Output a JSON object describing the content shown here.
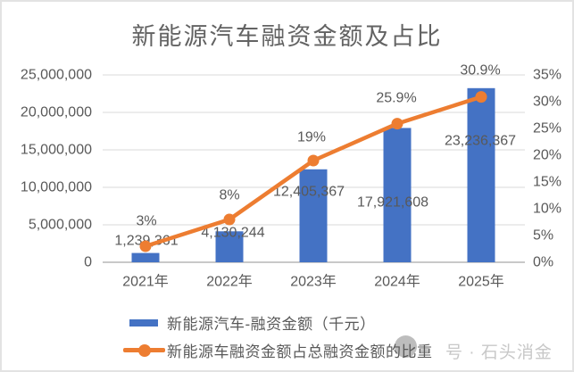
{
  "chart_data": {
    "type": "combo-bar-line",
    "title": "新能源汽车融资金额及占比",
    "categories": [
      "2021年",
      "2022年",
      "2023年",
      "2024年",
      "2025年"
    ],
    "series": [
      {
        "name": "新能源汽车-融资金额（千元）",
        "type": "bar",
        "axis": "left",
        "color": "#4472C4",
        "values": [
          1239361,
          4130244,
          12405367,
          17921608,
          23236367
        ],
        "labels": [
          "1,239,361",
          "4,130,244",
          "12,405,367",
          "17,921,608",
          "23,236,367"
        ]
      },
      {
        "name": "新能源车融资金额占总融资金额的比重",
        "type": "line",
        "axis": "right",
        "color": "#ED7D31",
        "values": [
          3,
          8,
          19,
          25.9,
          30.9
        ],
        "labels": [
          "3%",
          "8%",
          "19%",
          "25.9%",
          "30.9%"
        ]
      }
    ],
    "y_left": {
      "min": 0,
      "max": 25000000,
      "ticks": [
        {
          "v": 0,
          "label": "0"
        },
        {
          "v": 5000000,
          "label": "5,000,000"
        },
        {
          "v": 10000000,
          "label": "10,000,000"
        },
        {
          "v": 15000000,
          "label": "15,000,000"
        },
        {
          "v": 20000000,
          "label": "20,000,000"
        },
        {
          "v": 25000000,
          "label": "25,000,000"
        }
      ]
    },
    "y_right": {
      "min": 0,
      "max": 35,
      "ticks": [
        {
          "v": 0,
          "label": "0%"
        },
        {
          "v": 5,
          "label": "5%"
        },
        {
          "v": 10,
          "label": "10%"
        },
        {
          "v": 15,
          "label": "15%"
        },
        {
          "v": 20,
          "label": "20%"
        },
        {
          "v": 25,
          "label": "25%"
        },
        {
          "v": 30,
          "label": "30%"
        },
        {
          "v": 35,
          "label": "35%"
        }
      ]
    },
    "grid": true,
    "legend_position": "bottom"
  },
  "legend": {
    "bar_label": "新能源汽车-融资金额（千元）",
    "line_label": "新能源车融资金额占总融资金额的比重"
  },
  "watermark": {
    "text": "号 · 石头消金"
  },
  "colors": {
    "bar": "#4472C4",
    "line": "#ED7D31",
    "grid": "#D9D9D9",
    "axis_line": "#C9C9C9",
    "text": "#595959",
    "title": "#636363",
    "watermark": "#C8C8C8"
  }
}
